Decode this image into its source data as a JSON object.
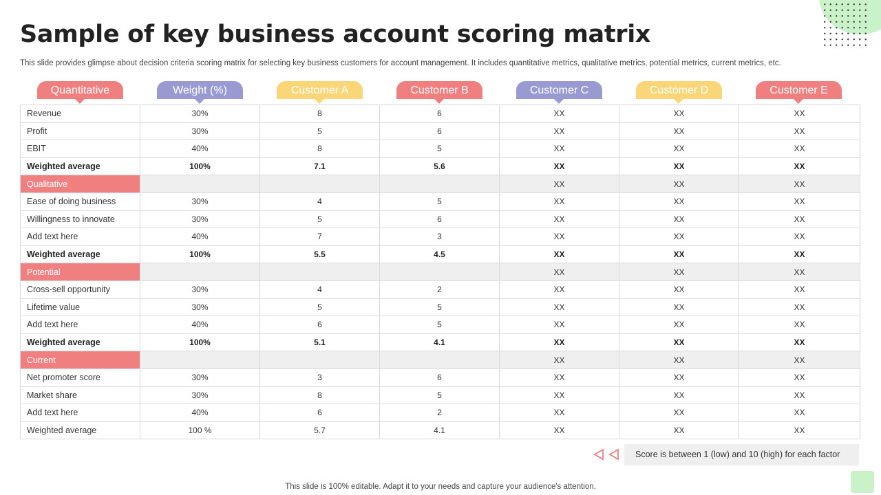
{
  "title": "Sample of key business account scoring matrix",
  "subtitle": "This slide provides glimpse about decision criteria scoring matrix for selecting key business customers for account management. It includes quantitative metrics, qualitative metrics, potential metrics, current metrics, etc.",
  "colors": {
    "red": "#f07f80",
    "purple": "#9a9ad2",
    "yellow": "#fbd679",
    "green_accent": "#c9f2c9"
  },
  "headers": [
    "Quantitative",
    "Weight (%)",
    "Customer A",
    "Customer B",
    "Customer C",
    "Customer D",
    "Customer E"
  ],
  "rows": [
    {
      "type": "data",
      "cells": [
        "Revenue",
        "30%",
        "8",
        "6",
        "XX",
        "XX",
        "XX"
      ]
    },
    {
      "type": "data",
      "cells": [
        "Profit",
        "30%",
        "5",
        "6",
        "XX",
        "XX",
        "XX"
      ]
    },
    {
      "type": "data",
      "cells": [
        "EBIT",
        "40%",
        "8",
        "5",
        "XX",
        "XX",
        "XX"
      ]
    },
    {
      "type": "bold",
      "cells": [
        "Weighted average",
        "100%",
        "7.1",
        "5.6",
        "XX",
        "XX",
        "XX"
      ]
    },
    {
      "type": "section",
      "cells": [
        "Qualitative",
        "",
        "",
        "",
        "XX",
        "XX",
        "XX"
      ]
    },
    {
      "type": "data",
      "cells": [
        "Ease of doing business",
        "30%",
        "4",
        "5",
        "XX",
        "XX",
        "XX"
      ]
    },
    {
      "type": "data",
      "cells": [
        "Willingness to innovate",
        "30%",
        "5",
        "6",
        "XX",
        "XX",
        "XX"
      ]
    },
    {
      "type": "data",
      "cells": [
        "Add text here",
        "40%",
        "7",
        "3",
        "XX",
        "XX",
        "XX"
      ]
    },
    {
      "type": "bold",
      "cells": [
        "Weighted average",
        "100%",
        "5.5",
        "4.5",
        "XX",
        "XX",
        "XX"
      ]
    },
    {
      "type": "section",
      "cells": [
        "Potential",
        "",
        "",
        "",
        "XX",
        "XX",
        "XX"
      ]
    },
    {
      "type": "data",
      "cells": [
        "Cross-sell opportunity",
        "30%",
        "4",
        "2",
        "XX",
        "XX",
        "XX"
      ]
    },
    {
      "type": "data",
      "cells": [
        "Lifetime value",
        "30%",
        "5",
        "5",
        "XX",
        "XX",
        "XX"
      ]
    },
    {
      "type": "data",
      "cells": [
        "Add text here",
        "40%",
        "6",
        "5",
        "XX",
        "XX",
        "XX"
      ]
    },
    {
      "type": "bold",
      "cells": [
        "Weighted average",
        "100%",
        "5.1",
        "4.1",
        "XX",
        "XX",
        "XX"
      ]
    },
    {
      "type": "section",
      "cells": [
        "Current",
        "",
        "",
        "",
        "XX",
        "XX",
        "XX"
      ]
    },
    {
      "type": "data",
      "cells": [
        "Net promoter score",
        "30%",
        "3",
        "6",
        "XX",
        "XX",
        "XX"
      ]
    },
    {
      "type": "data",
      "cells": [
        "Market share",
        "30%",
        "8",
        "5",
        "XX",
        "XX",
        "XX"
      ]
    },
    {
      "type": "data",
      "cells": [
        "Add text here",
        "40%",
        "6",
        "2",
        "XX",
        "XX",
        "XX"
      ]
    },
    {
      "type": "last",
      "cells": [
        "Weighted average",
        "100 %",
        "5.7",
        "4.1",
        "XX",
        "XX",
        "XX"
      ]
    }
  ],
  "legend": "Score is between 1 (low) and 10 (high) for each factor",
  "footer": "This slide is 100% editable. Adapt it to your needs and capture your audience's attention."
}
